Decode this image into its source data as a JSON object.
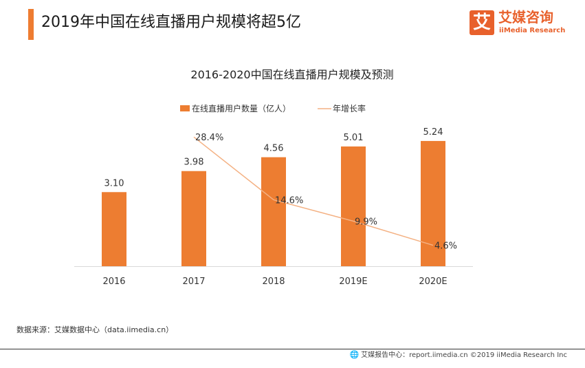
{
  "header": {
    "title": "2019年中国在线直播用户规模将超5亿",
    "accent_color": "#EE7C31"
  },
  "logo": {
    "mark": "艾",
    "name_cn": "艾媒咨询",
    "name_en": "iiMedia Research",
    "brand_color": "#E8612C"
  },
  "chart_data": {
    "type": "bar",
    "title": "2016-2020中国在线直播用户规模及预测",
    "categories": [
      "2016",
      "2017",
      "2018",
      "2019E",
      "2020E"
    ],
    "series": [
      {
        "name": "在线直播用户数量（亿人）",
        "kind": "bar",
        "color": "#ED7D31",
        "values": [
          3.1,
          3.98,
          4.56,
          5.01,
          5.24
        ],
        "labels": [
          "3.10",
          "3.98",
          "4.56",
          "5.01",
          "5.24"
        ]
      },
      {
        "name": "年增长率",
        "kind": "line",
        "color": "#F4B183",
        "values": [
          null,
          28.4,
          14.6,
          9.9,
          4.6
        ],
        "labels": [
          "",
          "28.4%",
          "14.6%",
          "9.9%",
          "4.6%"
        ]
      }
    ],
    "ylim": [
      0,
      5.9
    ],
    "y2lim": [
      0,
      31
    ],
    "grid": false,
    "legend_position": "top-center"
  },
  "source": "数据来源：艾媒数据中心（data.iimedia.cn）",
  "footer": {
    "text": "艾媒报告中心：report.iimedia.cn  ©2019  iiMedia Research  Inc",
    "icon": "globe-icon"
  }
}
